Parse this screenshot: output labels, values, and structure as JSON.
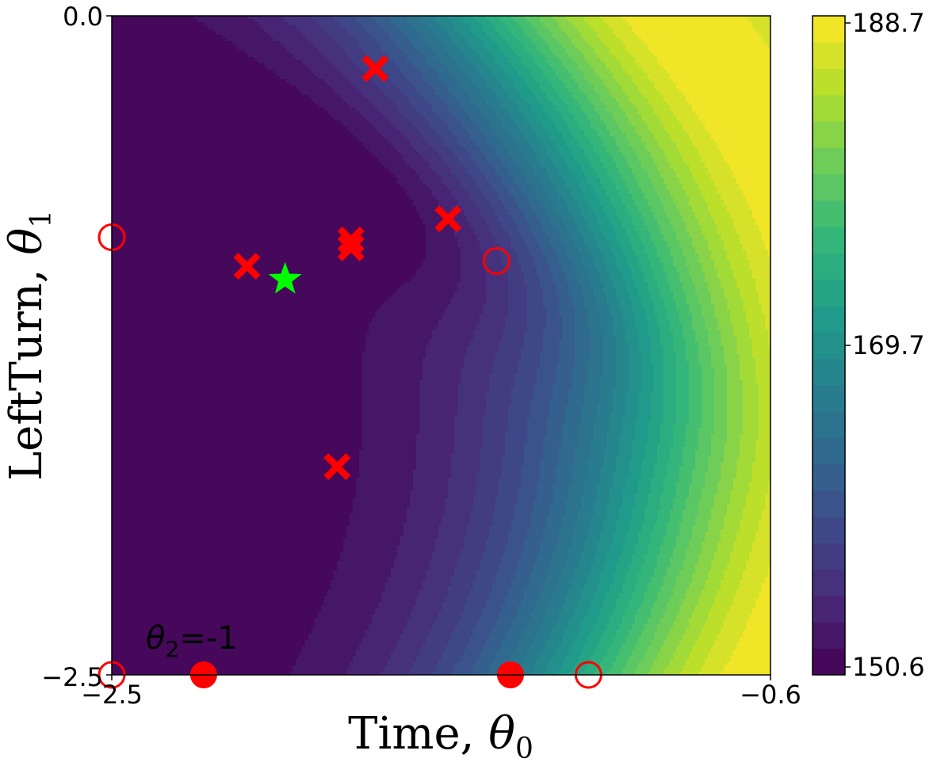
{
  "chart_data": {
    "type": "heatmap",
    "subtype": "filled-contour",
    "x": {
      "label_prefix": "Time, ",
      "label_symbol": "θ",
      "label_subscript": "0",
      "range": [
        -2.5,
        -0.6
      ],
      "tick_labels": [
        "−2.5",
        "−0.6"
      ],
      "ticks": [
        -2.5,
        -0.6
      ]
    },
    "y": {
      "label_prefix": "LeftTurn, ",
      "label_symbol": "θ",
      "label_subscript": "1",
      "range": [
        -2.5,
        0.0
      ],
      "tick_labels": [
        "−2.5",
        "0.0"
      ],
      "ticks": [
        -2.5,
        0.0
      ]
    },
    "colorbar": {
      "min": 150.6,
      "max": 188.7,
      "levels": 25,
      "colormap": "viridis",
      "tick_labels": [
        "150.6",
        "169.7",
        "188.7"
      ],
      "ticks": [
        150.6,
        169.7,
        188.7
      ]
    },
    "annotation": {
      "symbol": "θ",
      "subscript": "2",
      "text": "=-1"
    },
    "series": [
      {
        "name": "observed points (x markers)",
        "marker": "X",
        "color": "#ff0000",
        "points": [
          [
            -1.74,
            -0.2
          ],
          [
            -1.53,
            -0.77
          ],
          [
            -1.81,
            -0.85
          ],
          [
            -1.81,
            -0.88
          ],
          [
            -2.11,
            -0.95
          ],
          [
            -1.85,
            -1.71
          ]
        ]
      },
      {
        "name": "filled circles",
        "marker": "filled-circle",
        "color": "#ff0000",
        "points": [
          [
            -2.235,
            -2.5
          ],
          [
            -1.35,
            -2.5
          ]
        ]
      },
      {
        "name": "open circles",
        "marker": "open-circle",
        "color": "#ff0000",
        "points": [
          [
            -2.5,
            -0.84
          ],
          [
            -1.39,
            -0.93
          ],
          [
            -1.125,
            -2.5
          ],
          [
            -2.5,
            -2.5
          ]
        ]
      },
      {
        "name": "optimum",
        "marker": "star",
        "color": "#00ff00",
        "points": [
          [
            -2.0,
            -1.0
          ]
        ]
      }
    ]
  }
}
